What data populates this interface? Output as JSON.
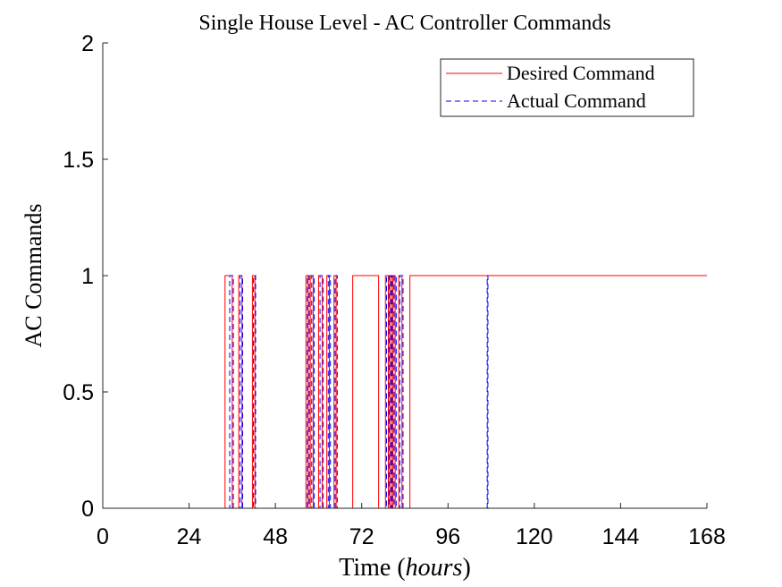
{
  "chart_data": {
    "type": "line",
    "title": "Single House Level - AC Controller Commands",
    "xlabel_prefix": "Time (",
    "xlabel_unit": "hours",
    "xlabel_suffix": ")",
    "ylabel": "AC Commands",
    "xlim": [
      0,
      168
    ],
    "ylim": [
      0,
      2
    ],
    "xticks": [
      0,
      24,
      48,
      72,
      96,
      120,
      144,
      168
    ],
    "xtick_labels": [
      "0",
      "24",
      "48",
      "72",
      "96",
      "120",
      "144",
      "168"
    ],
    "yticks": [
      0,
      0.5,
      1,
      1.5,
      2
    ],
    "ytick_labels": [
      "0",
      "0.5",
      "1",
      "1.5",
      "2"
    ],
    "grid": false,
    "legend_position": "top-right",
    "series": [
      {
        "name": "Desired Command",
        "color": "#ff0000",
        "style": "solid",
        "x": [
          0,
          0,
          0.3,
          0.3,
          34,
          34,
          36,
          36,
          37.8,
          37.8,
          38.7,
          38.7,
          41.6,
          41.6,
          42.3,
          42.3,
          56.5,
          56.5,
          57.1,
          57.1,
          57.7,
          57.7,
          58.5,
          58.5,
          60,
          60,
          61,
          61,
          62.3,
          62.3,
          63,
          63,
          64.3,
          64.3,
          64.9,
          64.9,
          69.5,
          69.5,
          76.7,
          76.7,
          78.6,
          78.6,
          79.4,
          79.4,
          79.8,
          79.8,
          80.3,
          80.3,
          80.7,
          80.7,
          81.3,
          81.3,
          82.3,
          82.3,
          83.2,
          83.2,
          85.4,
          85.4,
          168
        ],
        "y": [
          1,
          0,
          0,
          0,
          0,
          1,
          1,
          0,
          0,
          1,
          1,
          0,
          0,
          1,
          1,
          0,
          0,
          1,
          1,
          0,
          0,
          1,
          1,
          0,
          0,
          1,
          1,
          0,
          0,
          1,
          1,
          0,
          0,
          1,
          1,
          0,
          0,
          1,
          1,
          0,
          0,
          1,
          1,
          0,
          0,
          1,
          1,
          0,
          0,
          1,
          1,
          0,
          0,
          1,
          1,
          0,
          0,
          1,
          1
        ]
      },
      {
        "name": "Actual Command",
        "color": "#0000ff",
        "style": "dashed",
        "x": [
          0,
          35.3,
          35.3,
          36.3,
          36.3,
          38.2,
          38.2,
          38.9,
          38.9,
          41.9,
          41.9,
          42.5,
          42.5,
          56.9,
          56.9,
          57.4,
          57.4,
          58.1,
          58.1,
          58.8,
          58.8,
          60.4,
          60.4,
          61.3,
          61.3,
          62.7,
          62.7,
          63.3,
          63.3,
          64.6,
          64.6,
          65.2,
          65.2,
          78.9,
          78.9,
          79.6,
          79.6,
          80.1,
          80.1,
          80.5,
          80.5,
          81,
          81,
          81.6,
          81.6,
          82.6,
          82.6,
          83.5,
          83.5,
          106.9,
          106.9,
          107.1,
          107.1,
          168
        ],
        "y": [
          0,
          0,
          1,
          1,
          0,
          0,
          1,
          1,
          0,
          0,
          1,
          1,
          0,
          0,
          1,
          1,
          0,
          0,
          1,
          1,
          0,
          0,
          1,
          1,
          0,
          0,
          1,
          1,
          0,
          0,
          1,
          1,
          0,
          0,
          1,
          1,
          0,
          0,
          1,
          1,
          0,
          0,
          1,
          1,
          0,
          0,
          1,
          1,
          0,
          0,
          1,
          1,
          0,
          0
        ]
      }
    ]
  }
}
